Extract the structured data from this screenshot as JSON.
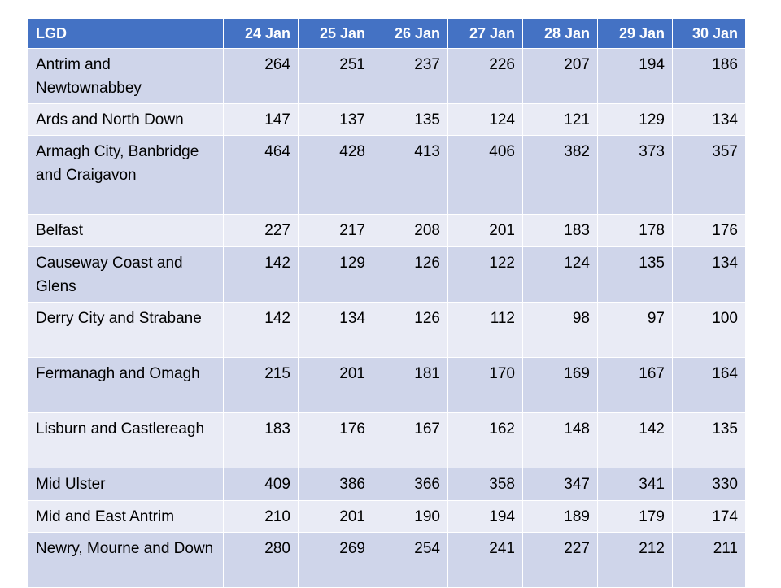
{
  "table": {
    "columns": [
      "LGD",
      "24 Jan",
      "25 Jan",
      "26 Jan",
      "27 Jan",
      "28 Jan",
      "29 Jan",
      "30 Jan"
    ],
    "rows": [
      [
        "Antrim and Newtownabbey",
        264,
        251,
        237,
        226,
        207,
        194,
        186
      ],
      [
        "Ards and North Down",
        147,
        137,
        135,
        124,
        121,
        129,
        134
      ],
      [
        "Armagh City, Banbridge and Craigavon",
        464,
        428,
        413,
        406,
        382,
        373,
        357
      ],
      [
        "Belfast",
        227,
        217,
        208,
        201,
        183,
        178,
        176
      ],
      [
        "Causeway Coast and Glens",
        142,
        129,
        126,
        122,
        124,
        135,
        134
      ],
      [
        "Derry City and Strabane",
        142,
        134,
        126,
        112,
        98,
        97,
        100
      ],
      [
        "Fermanagh and Omagh",
        215,
        201,
        181,
        170,
        169,
        167,
        164
      ],
      [
        "Lisburn and Castlereagh",
        183,
        176,
        167,
        162,
        148,
        142,
        135
      ],
      [
        "Mid Ulster",
        409,
        386,
        366,
        358,
        347,
        341,
        330
      ],
      [
        "Mid and East Antrim",
        210,
        201,
        190,
        194,
        189,
        179,
        174
      ],
      [
        "Newry, Mourne and Down",
        280,
        269,
        254,
        241,
        227,
        212,
        211
      ]
    ]
  }
}
